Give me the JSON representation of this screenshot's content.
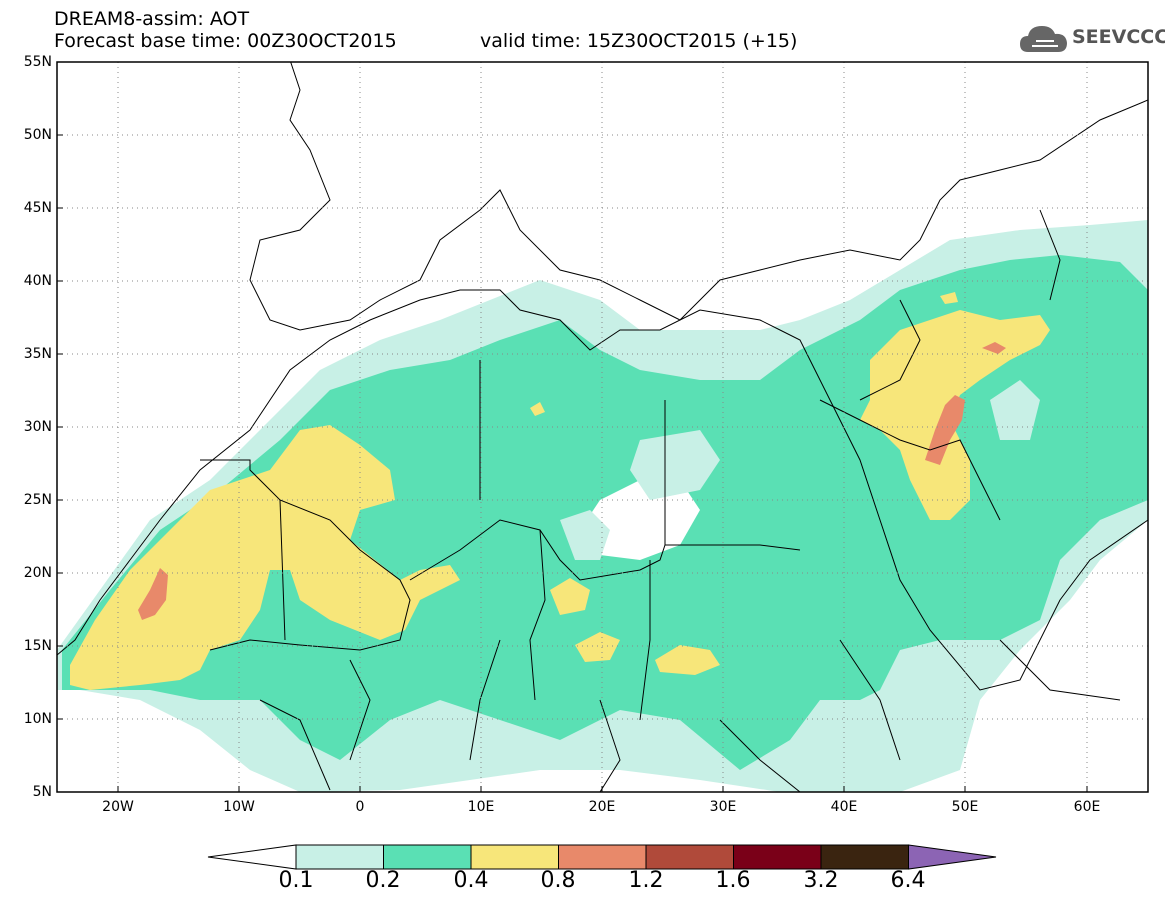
{
  "header": {
    "line1": "DREAM8-assim: AOT",
    "line2": "Forecast base time: 00Z30OCT2015",
    "valid": "valid time: 15Z30OCT2015 (+15)",
    "logo_text": "SEEVCCC"
  },
  "axes": {
    "lat_labels": [
      "55N",
      "50N",
      "45N",
      "40N",
      "35N",
      "30N",
      "25N",
      "20N",
      "15N",
      "10N",
      "5N"
    ],
    "lon_labels": [
      "20W",
      "10W",
      "0",
      "10E",
      "20E",
      "30E",
      "40E",
      "50E",
      "60E"
    ]
  },
  "colorbar": {
    "labels": [
      "0.1",
      "0.2",
      "0.4",
      "0.8",
      "1.2",
      "1.6",
      "3.2",
      "6.4"
    ],
    "colors": [
      "#ffffff",
      "#c8f0e6",
      "#5ae0b4",
      "#f7e67a",
      "#e8896a",
      "#b04a3a",
      "#7a0018",
      "#3a2410",
      "#8c64b4"
    ]
  },
  "map_colors": {
    "background": "#ffffff",
    "level_01": "#c8f0e6",
    "level_02": "#5ae0b4",
    "level_04": "#f7e67a",
    "level_08": "#e8896a",
    "border": "#000000",
    "grid": "#777777"
  }
}
